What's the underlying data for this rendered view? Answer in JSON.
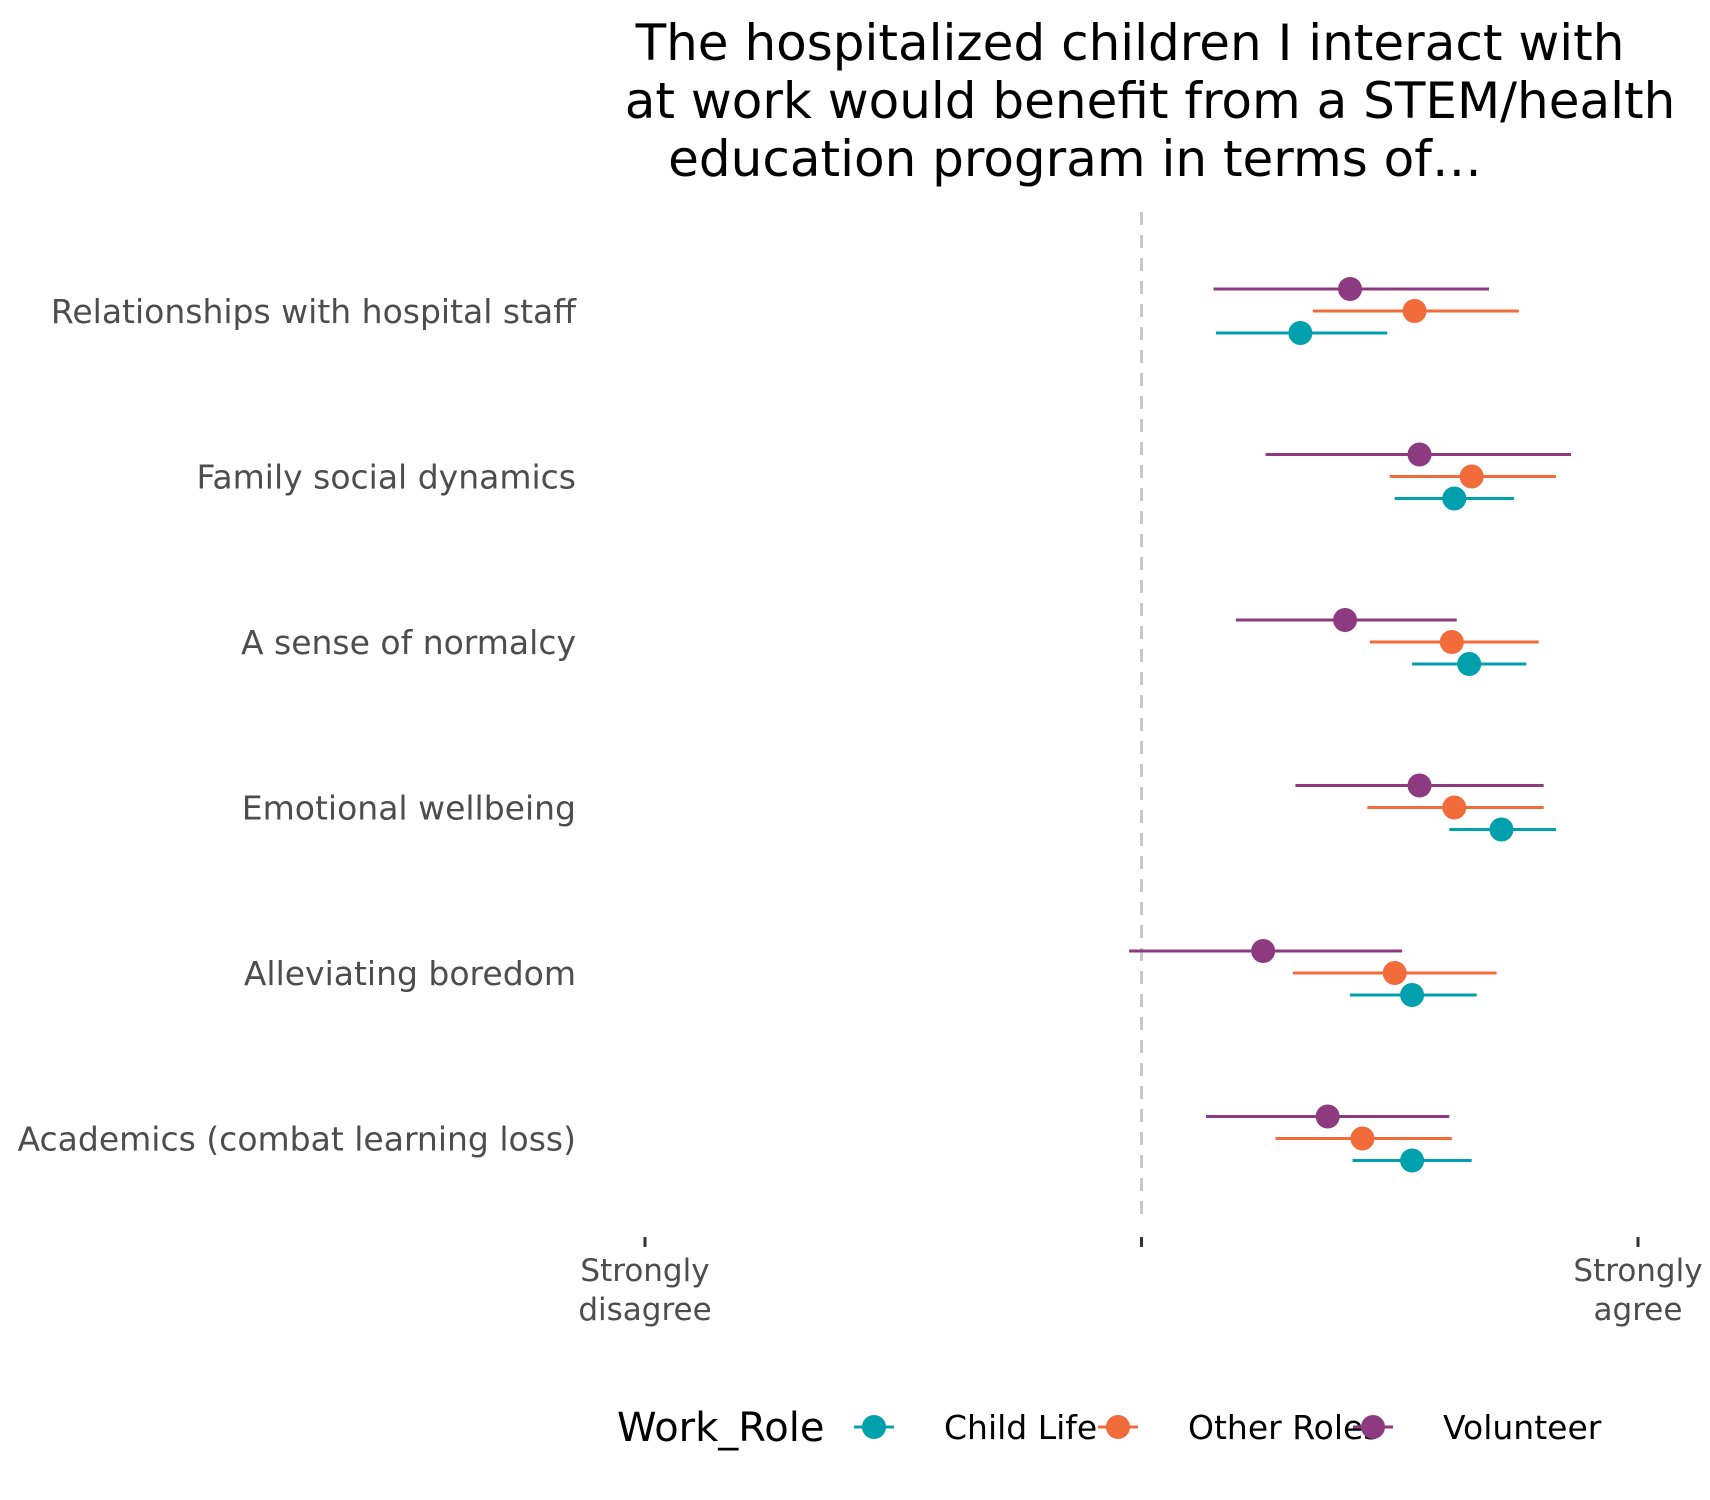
{
  "chart_data": {
    "type": "dot-errorbar",
    "title_lines": [
      "The hospitalized children I interact with",
      "at work would benefit from a STEM/health",
      "education program in terms of…"
    ],
    "xlabel": "",
    "ylabel": "",
    "xlim": [
      1,
      5
    ],
    "reference_line": 3,
    "x_ticks": [
      {
        "value": 1,
        "lines": [
          "Strongly",
          "disagree"
        ]
      },
      {
        "value": 3,
        "lines": []
      },
      {
        "value": 5,
        "lines": [
          "Strongly",
          "agree"
        ]
      }
    ],
    "categories": [
      "Relationships with hospital staff",
      "Family social dynamics",
      "A sense of normalcy",
      "Emotional wellbeing",
      "Alleviating boredom",
      "Academics (combat learning loss)"
    ],
    "legend": {
      "title": "Work_Role",
      "position": "bottom"
    },
    "series": [
      {
        "name": "Child Life",
        "color": "#00A0AD",
        "mean": [
          3.64,
          4.26,
          4.32,
          4.45,
          4.09,
          4.09
        ],
        "lower": [
          3.3,
          4.02,
          4.09,
          4.24,
          3.84,
          3.85
        ],
        "upper": [
          3.99,
          4.5,
          4.55,
          4.67,
          4.35,
          4.33
        ]
      },
      {
        "name": "Other Roles",
        "color": "#F26B3A",
        "mean": [
          4.1,
          4.33,
          4.25,
          4.26,
          4.02,
          3.89
        ],
        "lower": [
          3.69,
          4.0,
          3.92,
          3.91,
          3.61,
          3.54
        ],
        "upper": [
          4.52,
          4.67,
          4.6,
          4.62,
          4.43,
          4.25
        ]
      },
      {
        "name": "Volunteer",
        "color": "#8E3A80",
        "mean": [
          3.84,
          4.12,
          3.82,
          4.12,
          3.49,
          3.75
        ],
        "lower": [
          3.29,
          3.5,
          3.38,
          3.62,
          2.95,
          3.26
        ],
        "upper": [
          4.4,
          4.73,
          4.27,
          4.62,
          4.05,
          4.24
        ]
      }
    ]
  }
}
